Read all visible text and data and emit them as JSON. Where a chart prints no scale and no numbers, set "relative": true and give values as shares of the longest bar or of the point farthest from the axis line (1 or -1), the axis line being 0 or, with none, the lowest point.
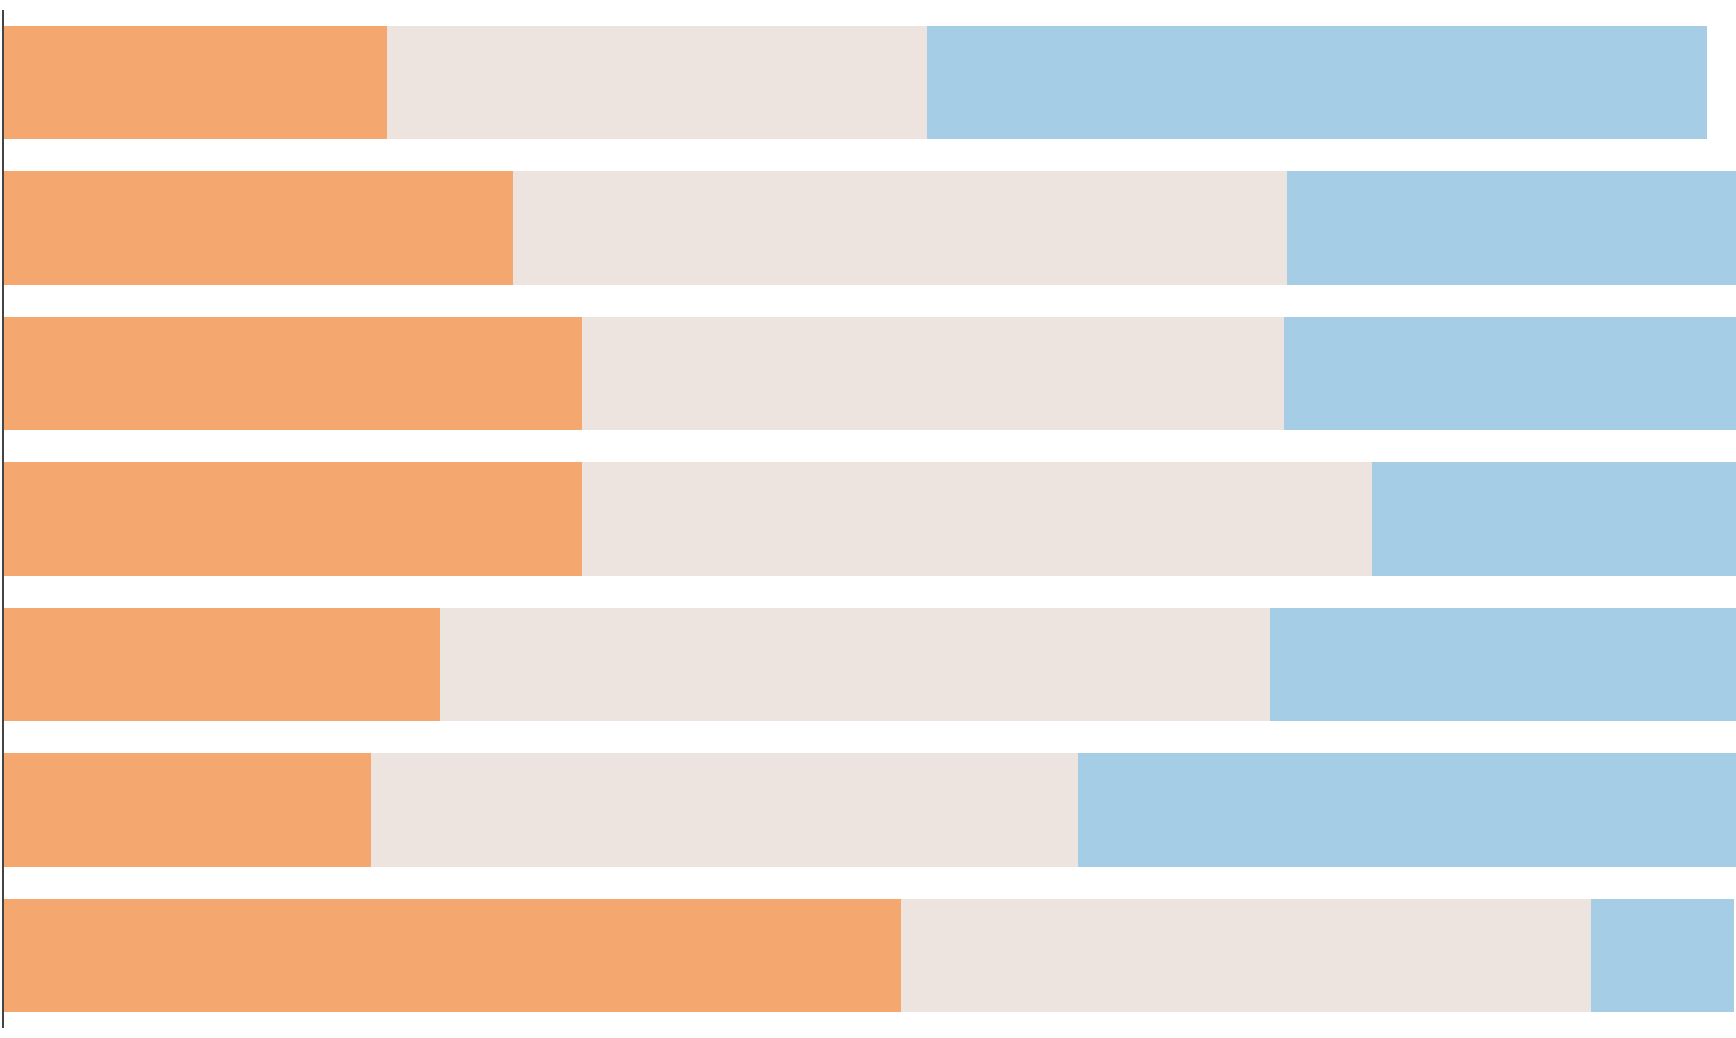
{
  "chart_data": {
    "type": "bar",
    "orientation": "horizontal",
    "stacked": true,
    "relative": true,
    "categories": [
      null,
      null,
      null,
      null,
      null,
      null,
      null
    ],
    "series": [
      {
        "color": "#f4a76f",
        "values": [
          0.221,
          0.294,
          0.334,
          0.334,
          0.252,
          0.212,
          0.518
        ]
      },
      {
        "color": "#ede3df",
        "values": [
          0.312,
          0.447,
          0.405,
          0.456,
          0.479,
          0.408,
          0.398
        ]
      },
      {
        "color": "#a6cde6",
        "values": [
          0.45,
          0.259,
          0.261,
          0.21,
          0.269,
          0.38,
          0.083
        ]
      }
    ]
  }
}
